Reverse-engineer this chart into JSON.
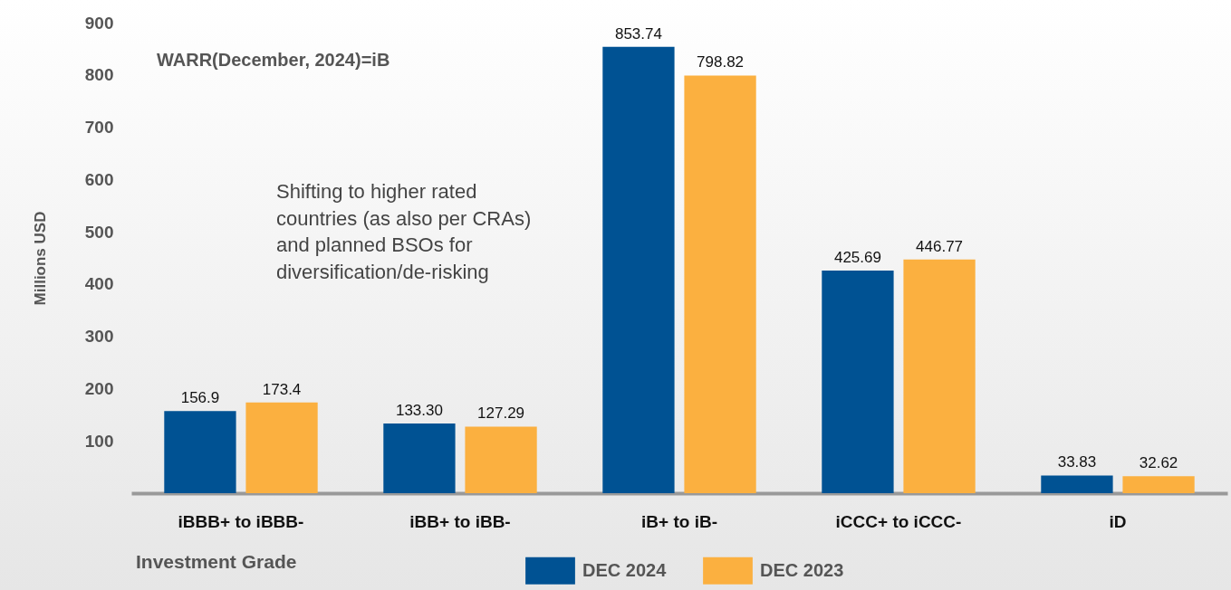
{
  "chart_data": {
    "type": "bar",
    "ylabel": "Millions USD",
    "categories": [
      "iBBB+ to iBBB-",
      "iBB+ to iBB-",
      "iB+ to iB-",
      "iCCC+ to iCCC-",
      "iD"
    ],
    "series": [
      {
        "name": "DEC 2024",
        "color": "#005293",
        "values": [
          156.9,
          133.3,
          853.74,
          425.69,
          33.83
        ],
        "value_labels": [
          "156.9",
          "133.30",
          "853.74",
          "425.69",
          "33.83"
        ]
      },
      {
        "name": "DEC 2023",
        "color": "#fbb040",
        "values": [
          173.4,
          127.29,
          798.82,
          446.77,
          32.62
        ],
        "value_labels": [
          "173.4",
          "127.29",
          "798.82",
          "446.77",
          "32.62"
        ]
      }
    ],
    "ylim": [
      0,
      900
    ],
    "yticks": [
      100,
      200,
      300,
      400,
      500,
      600,
      700,
      800,
      900
    ],
    "grid": false,
    "legend": "bottom",
    "annotations": [
      "WARR(December, 2024)=iB",
      "Shifting to higher rated countries (as also per CRAs) and planned BSOs for diversification/de-risking",
      "Investment Grade"
    ]
  }
}
